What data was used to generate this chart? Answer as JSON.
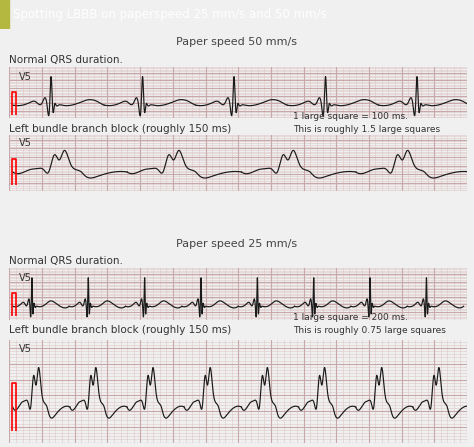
{
  "title": "Spotting LBBB on paperspeed 25 mm/s and 50 mm/s",
  "title_bg": "#3aacb0",
  "title_accent": "#b5b840",
  "title_color": "white",
  "section1_title": "Paper speed 50 mm/s",
  "section2_title": "Paper speed 25 mm/s",
  "label_normal": "Normal QRS duration.",
  "label_lbbb": "Left bundle branch block (roughly 150 ms)",
  "lead_label": "V5",
  "note1": "1 large square = 100 ms.\nThis is roughly 1.5 large squares",
  "note2": "1 large square = 200 ms.\nThis is roughly 0.75 large squares",
  "grid_minor_color": "#ddc8c8",
  "grid_major_color": "#c8a8a8",
  "ecg_bg_color": "#f7f0f0",
  "ecg_color": "#1a1a1a",
  "note_bg": "#cccccc",
  "section_bg": "#e5e5e5",
  "white": "#ffffff",
  "fig_bg": "#f0f0f0"
}
